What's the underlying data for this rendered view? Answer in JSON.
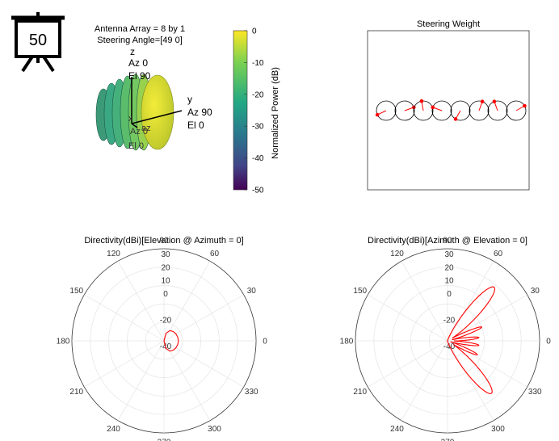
{
  "badge": {
    "value": "50"
  },
  "pattern3d": {
    "title_line1": "Antenna Array = 8 by 1",
    "title_line2": "Steering Angle=[49 0]",
    "axis_z": {
      "name": "z",
      "az": "Az 0",
      "el": "El 90"
    },
    "axis_y": {
      "name": "y",
      "az": "Az 90",
      "el": "El 0"
    },
    "axis_x": {
      "name": "x",
      "az": "Az 0",
      "el": "El 0"
    },
    "axis_ref": {
      "name": "az",
      "az": "Az 0",
      "el": "El 0"
    }
  },
  "colorbar": {
    "label": "Normalized Power (dB)",
    "ticks": [
      "0",
      "-10",
      "-20",
      "-30",
      "-40",
      "-50"
    ],
    "colors": [
      "#fde725",
      "#7ad151",
      "#22a884",
      "#2a788e",
      "#414487",
      "#440154"
    ]
  },
  "chart_data": [
    {
      "type": "scatter",
      "title": "Steering Weight",
      "elements": 8,
      "phases_deg": [
        205,
        20,
        100,
        160,
        240,
        70,
        110,
        30
      ],
      "marker_color": "#ff0000"
    },
    {
      "type": "polar-line",
      "title": "Directivity(dBi)[Elevation @ Azimuth = 0]",
      "angle_ticks": [
        "90",
        "60",
        "30",
        "0",
        "330",
        "300",
        "270",
        "240",
        "210",
        "180",
        "150",
        "120"
      ],
      "radial_ticks": [
        "30",
        "20",
        "10",
        "0",
        "-20",
        "-40"
      ],
      "series_color": "#ff0000",
      "series": [
        {
          "angle_deg": [
            -90,
            -75,
            -60,
            -45,
            -30,
            -15,
            0,
            15,
            30,
            45,
            60,
            75,
            90
          ],
          "r": [
            -40,
            -34,
            -31,
            -30,
            -29.5,
            -29.2,
            -29,
            -29.2,
            -29.5,
            -30,
            -31,
            -34,
            -40
          ]
        }
      ]
    },
    {
      "type": "polar-line",
      "title": "Directivity(dBi)[Azimuth @ Elevation = 0]",
      "angle_ticks": [
        "90",
        "60",
        "30",
        "0",
        "330",
        "300",
        "270",
        "240",
        "210",
        "180",
        "150",
        "120"
      ],
      "radial_ticks": [
        "30",
        "20",
        "10",
        "0",
        "-20",
        "-40"
      ],
      "series_color": "#ff0000",
      "lobes": [
        {
          "center_deg": 49,
          "peak": 14
        },
        {
          "center_deg": 22,
          "peak": -12
        },
        {
          "center_deg": 6,
          "peak": -16
        },
        {
          "center_deg": -8,
          "peak": -16
        },
        {
          "center_deg": -25,
          "peak": -15
        },
        {
          "center_deg": -50,
          "peak": 12
        }
      ]
    }
  ]
}
